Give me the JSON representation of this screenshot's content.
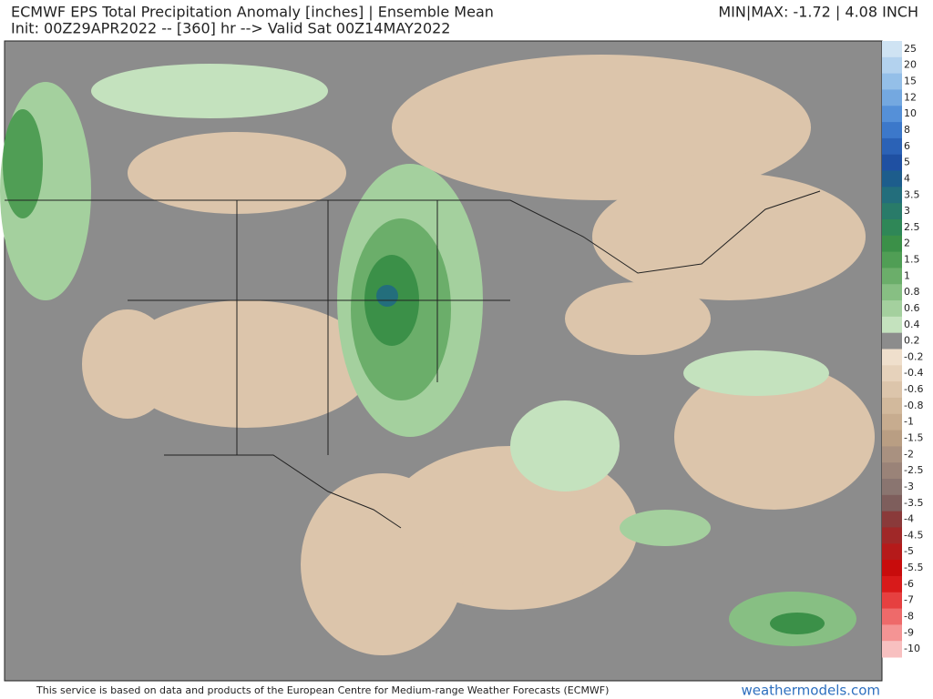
{
  "header": {
    "title": "ECMWF EPS Total Precipitation Anomaly [inches] | Ensemble Mean",
    "init": "Init: 00Z29APR2022 -- [360] hr --> Valid Sat 00Z14MAY2022",
    "minmax": "MIN|MAX: -1.72 | 4.08 INCH"
  },
  "colorbar": [
    {
      "label": 25,
      "color": "#cfe3f3"
    },
    {
      "label": 20,
      "color": "#b3d2ee"
    },
    {
      "label": 15,
      "color": "#94bfe8"
    },
    {
      "label": 12,
      "color": "#74a8e0"
    },
    {
      "label": 10,
      "color": "#5590d8"
    },
    {
      "label": 8,
      "color": "#3c78ca"
    },
    {
      "label": 6,
      "color": "#2b62b6"
    },
    {
      "label": 5,
      "color": "#1f50a2"
    },
    {
      "label": 4,
      "color": "#1d5d8c"
    },
    {
      "label": 3.5,
      "color": "#236e7c"
    },
    {
      "label": 3,
      "color": "#297b69"
    },
    {
      "label": 2.5,
      "color": "#2f8757"
    },
    {
      "label": 2,
      "color": "#3b9048"
    },
    {
      "label": 1.5,
      "color": "#509e55"
    },
    {
      "label": 1,
      "color": "#6bae6a"
    },
    {
      "label": 0.8,
      "color": "#87bf83"
    },
    {
      "label": 0.6,
      "color": "#a4d09e"
    },
    {
      "label": 0.4,
      "color": "#c4e2be"
    },
    {
      "label": 0.2,
      "color": "#8c8c8c"
    },
    {
      "label": -0.2,
      "color": "#efdfcc"
    },
    {
      "label": -0.4,
      "color": "#e6d2bb"
    },
    {
      "label": -0.6,
      "color": "#dcc5ab"
    },
    {
      "label": -0.8,
      "color": "#d2b99c"
    },
    {
      "label": -1,
      "color": "#c7ac8f"
    },
    {
      "label": -1.5,
      "color": "#b99e83"
    },
    {
      "label": -2,
      "color": "#a99180"
    },
    {
      "label": -2.5,
      "color": "#9a8378"
    },
    {
      "label": -3,
      "color": "#8a7570"
    },
    {
      "label": -3.5,
      "color": "#7e5e5c"
    },
    {
      "label": -4,
      "color": "#8a3a3a"
    },
    {
      "label": -4.5,
      "color": "#a02828"
    },
    {
      "label": -5,
      "color": "#b51a1a"
    },
    {
      "label": -5.5,
      "color": "#c80c0c"
    },
    {
      "label": -6,
      "color": "#d81a1a"
    },
    {
      "label": -7,
      "color": "#e64040"
    },
    {
      "label": -8,
      "color": "#ee6a6a"
    },
    {
      "label": -9,
      "color": "#f49494"
    },
    {
      "label": -10,
      "color": "#f8c0c0"
    }
  ],
  "footer": {
    "credit": "This service is based on data and products of the European Centre for Medium-range Weather Forecasts (ECMWF)",
    "site": "weathermodels.com"
  }
}
